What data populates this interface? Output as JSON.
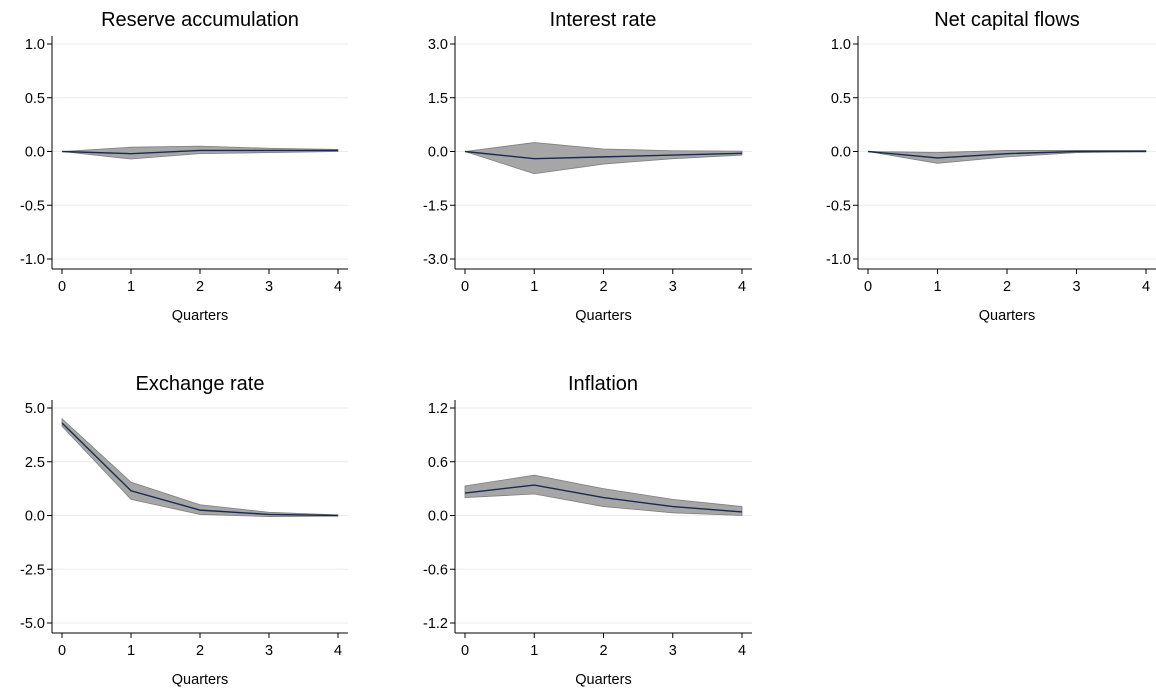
{
  "chart_data": [
    {
      "type": "line",
      "title": "Reserve accumulation",
      "xlabel": "Quarters",
      "x": [
        0,
        1,
        2,
        3,
        4
      ],
      "x_ticks": [
        "0",
        "1",
        "2",
        "3",
        "4"
      ],
      "ylim": [
        -1.0,
        1.0
      ],
      "y_ticks": [
        "1.0",
        "0.5",
        "0.0",
        "-0.5",
        "-1.0"
      ],
      "y_tick_values": [
        1.0,
        0.5,
        0.0,
        -0.5,
        -1.0
      ],
      "series": [
        {
          "values": [
            0.0,
            -0.02,
            0.01,
            0.01,
            0.01
          ]
        },
        {
          "role": "upper_band",
          "values": [
            0.0,
            0.04,
            0.05,
            0.03,
            0.02
          ]
        },
        {
          "role": "lower_band",
          "values": [
            0.0,
            -0.07,
            -0.02,
            -0.01,
            0.0
          ]
        }
      ]
    },
    {
      "type": "line",
      "title": "Interest rate",
      "xlabel": "Quarters",
      "x": [
        0,
        1,
        2,
        3,
        4
      ],
      "x_ticks": [
        "0",
        "1",
        "2",
        "3",
        "4"
      ],
      "ylim": [
        -3.0,
        3.0
      ],
      "y_ticks": [
        "3.0",
        "1.5",
        "0.0",
        "-1.5",
        "-3.0"
      ],
      "y_tick_values": [
        3.0,
        1.5,
        0.0,
        -1.5,
        -3.0
      ],
      "series": [
        {
          "values": [
            0.0,
            -0.2,
            -0.15,
            -0.1,
            -0.05
          ]
        },
        {
          "role": "upper_band",
          "values": [
            0.0,
            0.25,
            0.07,
            0.02,
            0.01
          ]
        },
        {
          "role": "lower_band",
          "values": [
            0.0,
            -0.62,
            -0.35,
            -0.2,
            -0.1
          ]
        }
      ]
    },
    {
      "type": "line",
      "title": "Net capital flows",
      "xlabel": "Quarters",
      "x": [
        0,
        1,
        2,
        3,
        4
      ],
      "x_ticks": [
        "0",
        "1",
        "2",
        "3",
        "4"
      ],
      "ylim": [
        -1.0,
        1.0
      ],
      "y_ticks": [
        "1.0",
        "0.5",
        "0.0",
        "-0.5",
        "-1.0"
      ],
      "y_tick_values": [
        1.0,
        0.5,
        0.0,
        -0.5,
        -1.0
      ],
      "series": [
        {
          "values": [
            0.0,
            -0.06,
            -0.02,
            0.0,
            0.0
          ]
        },
        {
          "role": "upper_band",
          "values": [
            0.0,
            -0.01,
            0.01,
            0.01,
            0.01
          ]
        },
        {
          "role": "lower_band",
          "values": [
            0.0,
            -0.11,
            -0.05,
            -0.01,
            0.0
          ]
        }
      ]
    },
    {
      "type": "line",
      "title": "Exchange rate",
      "xlabel": "Quarters",
      "x": [
        0,
        1,
        2,
        3,
        4
      ],
      "x_ticks": [
        "0",
        "1",
        "2",
        "3",
        "4"
      ],
      "ylim": [
        -5.0,
        5.0
      ],
      "y_ticks": [
        "5.0",
        "2.5",
        "0.0",
        "-2.5",
        "-5.0"
      ],
      "y_tick_values": [
        5.0,
        2.5,
        0.0,
        -2.5,
        -5.0
      ],
      "series": [
        {
          "values": [
            4.3,
            1.15,
            0.25,
            0.05,
            0.0
          ]
        },
        {
          "role": "upper_band",
          "values": [
            4.5,
            1.55,
            0.5,
            0.15,
            0.03
          ]
        },
        {
          "role": "lower_band",
          "values": [
            4.15,
            0.75,
            0.05,
            -0.05,
            -0.03
          ]
        }
      ]
    },
    {
      "type": "line",
      "title": "Inflation",
      "xlabel": "Quarters",
      "x": [
        0,
        1,
        2,
        3,
        4
      ],
      "x_ticks": [
        "0",
        "1",
        "2",
        "3",
        "4"
      ],
      "ylim": [
        -1.2,
        1.2
      ],
      "y_ticks": [
        "1.2",
        "0.6",
        "0.0",
        "-0.6",
        "-1.2"
      ],
      "y_tick_values": [
        1.2,
        0.6,
        0.0,
        -0.6,
        -1.2
      ],
      "series": [
        {
          "values": [
            0.25,
            0.34,
            0.2,
            0.1,
            0.04
          ]
        },
        {
          "role": "upper_band",
          "values": [
            0.33,
            0.45,
            0.3,
            0.18,
            0.1
          ]
        },
        {
          "role": "lower_band",
          "values": [
            0.2,
            0.24,
            0.1,
            0.03,
            0.0
          ]
        }
      ]
    }
  ]
}
